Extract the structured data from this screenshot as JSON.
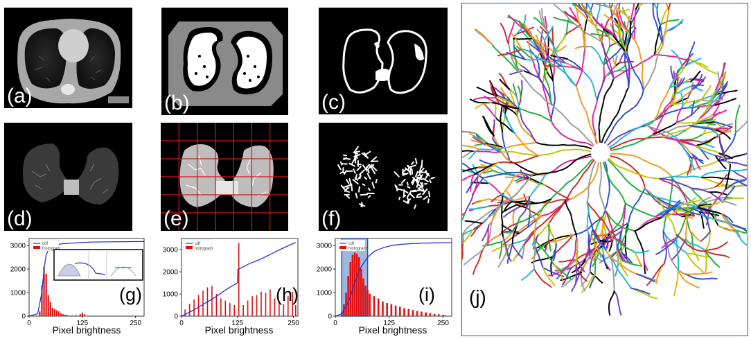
{
  "panels": {
    "a": {
      "label": "(a)"
    },
    "b": {
      "label": "(b)"
    },
    "c": {
      "label": "(c)"
    },
    "d": {
      "label": "(d)"
    },
    "e": {
      "label": "(e)"
    },
    "f": {
      "label": "(f)"
    },
    "j": {
      "label": "(j)"
    }
  },
  "colors": {
    "cdf": "#2a2ad8",
    "histogram": "#e01010",
    "grid": "#d01818",
    "highlight": "#7f9fd6",
    "border": "#2d4fa0"
  },
  "tree_palette": [
    "#e0239c",
    "#22b6d8",
    "#1fae3c",
    "#f39a1c",
    "#6a3fc0",
    "#000000",
    "#9c9c9c",
    "#d12626",
    "#2a4fd0",
    "#c4c600"
  ],
  "chart_data": [
    {
      "type": "bar",
      "panel": "(g)",
      "xlabel": "Pixel brightness",
      "ylabel": "",
      "xlim": [
        0,
        270
      ],
      "ylim": [
        0,
        3300
      ],
      "xticks": [
        "0",
        "125",
        "250"
      ],
      "yticks": [
        "0",
        "1000",
        "2000",
        "3000"
      ],
      "legend": [
        "cdf",
        "histogram"
      ],
      "legend_position": "top-left",
      "inset": true,
      "series": [
        {
          "name": "histogram",
          "x": [
            25,
            30,
            35,
            40,
            45,
            50,
            55,
            60,
            65,
            70,
            75,
            80,
            85,
            90,
            100,
            110,
            120,
            125,
            130,
            140
          ],
          "values": [
            200,
            1300,
            2100,
            1800,
            900,
            600,
            350,
            300,
            250,
            200,
            120,
            80,
            60,
            40,
            30,
            40,
            80,
            150,
            80,
            20
          ]
        },
        {
          "name": "cdf",
          "x": [
            0,
            20,
            30,
            35,
            40,
            45,
            50,
            60,
            70,
            80,
            100,
            125,
            150,
            200,
            270
          ],
          "values": [
            0,
            100,
            1000,
            2000,
            2600,
            2800,
            2900,
            3000,
            3050,
            3080,
            3100,
            3130,
            3150,
            3160,
            3170
          ]
        }
      ]
    },
    {
      "type": "bar",
      "panel": "(h)",
      "xlabel": "Pixel brightness",
      "ylabel": "",
      "xlim": [
        0,
        260
      ],
      "ylim": [
        0,
        3500
      ],
      "xticks": [
        "0",
        "125",
        "250"
      ],
      "yticks": [
        "0",
        "1000",
        "2000",
        "3000"
      ],
      "legend": [
        "cdf",
        "histogram"
      ],
      "legend_position": "top-left",
      "series": [
        {
          "name": "histogram",
          "x": [
            8,
            18,
            28,
            38,
            48,
            58,
            68,
            78,
            88,
            98,
            108,
            118,
            128,
            138,
            148,
            158,
            168,
            178,
            188,
            198,
            208,
            218,
            228,
            238,
            248,
            255
          ],
          "values": [
            300,
            550,
            750,
            950,
            1150,
            1300,
            1350,
            1000,
            800,
            700,
            600,
            500,
            3300,
            500,
            700,
            900,
            950,
            1100,
            1050,
            1200,
            800,
            650,
            550,
            900,
            1100,
            500
          ]
        },
        {
          "name": "cdf",
          "x": [
            0,
            25,
            50,
            75,
            100,
            125,
            126,
            150,
            175,
            200,
            225,
            255
          ],
          "values": [
            0,
            250,
            550,
            850,
            1200,
            1500,
            2100,
            2350,
            2550,
            2800,
            3050,
            3320
          ]
        }
      ]
    },
    {
      "type": "bar",
      "panel": "(i)",
      "xlabel": "Pixel brightness",
      "ylabel": "",
      "xlim": [
        0,
        270
      ],
      "ylim": [
        0,
        3300
      ],
      "xticks": [
        "0",
        "125",
        "250"
      ],
      "yticks": [
        "0",
        "1000",
        "2000",
        "3000"
      ],
      "legend": [
        "cdf",
        "histogram"
      ],
      "legend_position": "top-left",
      "highlight_range": [
        15,
        75
      ],
      "series": [
        {
          "name": "histogram",
          "x": [
            15,
            20,
            25,
            30,
            35,
            40,
            45,
            50,
            55,
            60,
            65,
            70,
            75,
            80,
            90,
            100,
            110,
            120,
            130,
            140,
            150,
            160,
            170,
            180,
            190,
            200,
            210,
            220,
            230,
            240,
            250,
            255
          ],
          "values": [
            150,
            500,
            1000,
            1700,
            2300,
            2600,
            2700,
            2650,
            2500,
            2000,
            1600,
            1300,
            1100,
            950,
            850,
            750,
            620,
            560,
            500,
            450,
            400,
            340,
            300,
            260,
            220,
            190,
            160,
            130,
            100,
            80,
            50,
            30
          ]
        },
        {
          "name": "cdf",
          "x": [
            0,
            15,
            30,
            45,
            60,
            75,
            90,
            110,
            130,
            150,
            175,
            200,
            225,
            250,
            270
          ],
          "values": [
            0,
            100,
            600,
            1400,
            2100,
            2500,
            2750,
            2900,
            3000,
            3050,
            3080,
            3100,
            3110,
            3120,
            3120
          ]
        }
      ]
    }
  ]
}
